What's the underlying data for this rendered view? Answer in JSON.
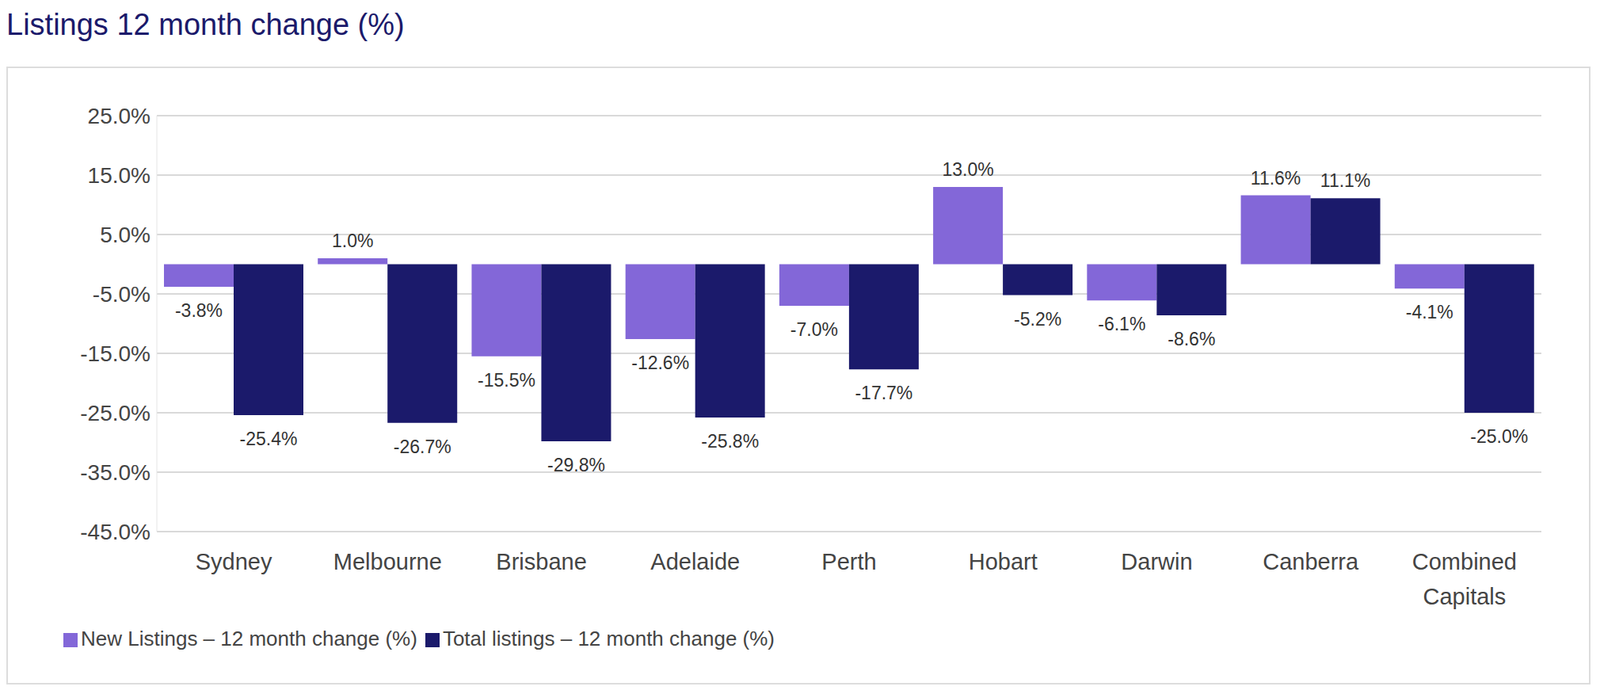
{
  "chart_data": {
    "type": "bar",
    "title": "Listings 12 month change (%)",
    "categories": [
      "Sydney",
      "Melbourne",
      "Brisbane",
      "Adelaide",
      "Perth",
      "Hobart",
      "Darwin",
      "Canberra",
      "Combined Capitals"
    ],
    "series": [
      {
        "name": "New Listings – 12 month change (%)",
        "color": "#8367d8",
        "values": [
          -3.8,
          1.0,
          -15.5,
          -12.6,
          -7.0,
          13.0,
          -6.1,
          11.6,
          -4.1
        ],
        "value_labels": [
          "-3.8%",
          "1.0%",
          "-15.5%",
          "-12.6%",
          "-7.0%",
          "13.0%",
          "-6.1%",
          "11.6%",
          "-4.1%"
        ]
      },
      {
        "name": "Total listings – 12 month change (%)",
        "color": "#1b1a6b",
        "values": [
          -25.4,
          -26.7,
          -29.8,
          -25.8,
          -17.7,
          -5.2,
          -8.6,
          11.1,
          -25.0
        ],
        "value_labels": [
          "-25.4%",
          "-26.7%",
          "-29.8%",
          "-25.8%",
          "-17.7%",
          "-5.2%",
          "-8.6%",
          "11.1%",
          "-25.0%"
        ]
      }
    ],
    "ylim": [
      -45,
      25
    ],
    "yticks": [
      {
        "value": -45,
        "label": "-45.0%"
      },
      {
        "value": -35,
        "label": "-35.0%"
      },
      {
        "value": -25,
        "label": "-25.0%"
      },
      {
        "value": -15,
        "label": "-15.0%"
      },
      {
        "value": -5,
        "label": "-5.0%"
      },
      {
        "value": 5,
        "label": "5.0%"
      },
      {
        "value": 15,
        "label": "15.0%"
      },
      {
        "value": 25,
        "label": "25.0%"
      }
    ],
    "grid": true,
    "legend": "bottom-left",
    "data_labels": true
  }
}
